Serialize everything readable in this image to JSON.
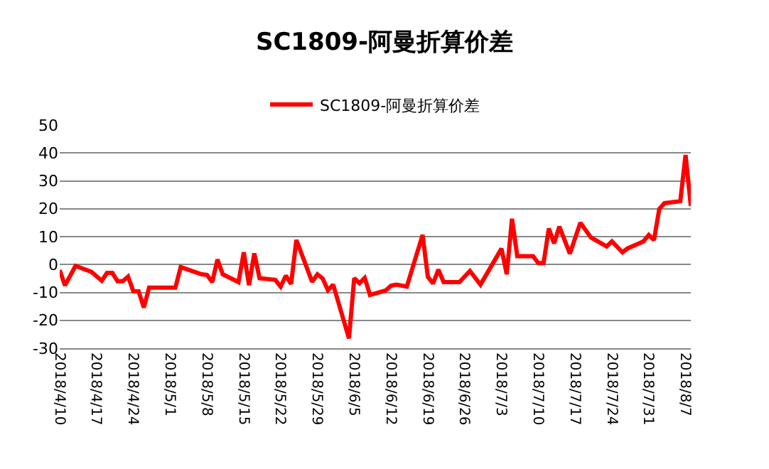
{
  "chart_data": {
    "type": "line",
    "title": "SC1809-阿曼折算价差",
    "legend": "top",
    "grid": "y",
    "marker": "none",
    "line_style": "solid",
    "x": [
      "2018-04-10",
      "2018-04-11",
      "2018-04-13",
      "2018-04-16",
      "2018-04-18",
      "2018-04-19",
      "2018-04-20",
      "2018-04-21",
      "2018-04-22",
      "2018-04-23",
      "2018-04-24",
      "2018-04-25",
      "2018-04-26",
      "2018-04-27",
      "2018-05-02",
      "2018-05-03",
      "2018-05-07",
      "2018-05-08",
      "2018-05-09",
      "2018-05-10",
      "2018-05-11",
      "2018-05-14",
      "2018-05-15",
      "2018-05-16",
      "2018-05-17",
      "2018-05-18",
      "2018-05-21",
      "2018-05-22",
      "2018-05-23",
      "2018-05-24",
      "2018-05-25",
      "2018-05-28",
      "2018-05-29",
      "2018-05-30",
      "2018-05-31",
      "2018-06-01",
      "2018-06-04",
      "2018-06-05",
      "2018-06-06",
      "2018-06-07",
      "2018-06-08",
      "2018-06-11",
      "2018-06-12",
      "2018-06-13",
      "2018-06-15",
      "2018-06-18",
      "2018-06-19",
      "2018-06-20",
      "2018-06-21",
      "2018-06-22",
      "2018-06-25",
      "2018-06-27",
      "2018-06-29",
      "2018-07-03",
      "2018-07-04",
      "2018-07-05",
      "2018-07-06",
      "2018-07-09",
      "2018-07-10",
      "2018-07-11",
      "2018-07-12",
      "2018-07-13",
      "2018-07-14",
      "2018-07-16",
      "2018-07-18",
      "2018-07-20",
      "2018-07-23",
      "2018-07-24",
      "2018-07-26",
      "2018-07-27",
      "2018-07-30",
      "2018-07-31",
      "2018-08-01",
      "2018-08-02",
      "2018-08-03",
      "2018-08-06",
      "2018-08-07",
      "2018-08-08"
    ],
    "series": [
      {
        "name": "SC1809-阿曼折算价差",
        "color": "#ff0000",
        "values": [
          -2,
          -7.5,
          -0.5,
          -2.6,
          -5.8,
          -3,
          -3,
          -6,
          -6,
          -4.3,
          -9.6,
          -9.6,
          -15.4,
          -8.3,
          -8.3,
          -0.9,
          -3.5,
          -3.7,
          -6.3,
          1.8,
          -3.5,
          -6.3,
          4.4,
          -7.4,
          4,
          -4.9,
          -5.5,
          -7.9,
          -4,
          -7,
          8.8,
          -6.2,
          -3.5,
          -5,
          -9.2,
          -7.2,
          -26.5,
          -4.9,
          -6.7,
          -4.8,
          -10.9,
          -9.3,
          -7.6,
          -7.2,
          -7.9,
          10.6,
          -4.4,
          -6.8,
          -1.8,
          -6.3,
          -6.3,
          -2.3,
          -7.2,
          5.7,
          -3.5,
          16.4,
          3,
          3,
          0.5,
          0.5,
          12.9,
          7.6,
          13.6,
          3.9,
          15,
          9.7,
          6.5,
          8.3,
          4.4,
          5.8,
          8.3,
          10.6,
          8.8,
          19.9,
          22,
          22.7,
          39.3,
          21
        ]
      }
    ],
    "ylim": [
      -30,
      50
    ],
    "yticks": [
      -30,
      -20,
      -10,
      0,
      10,
      20,
      30,
      40,
      50
    ],
    "xlim": [
      "2018-04-10",
      "2018-08-08"
    ],
    "xticks": [
      {
        "value": "2018-04-10",
        "label": "2018/4/10"
      },
      {
        "value": "2018-04-17",
        "label": "2018/4/17"
      },
      {
        "value": "2018-04-24",
        "label": "2018/4/24"
      },
      {
        "value": "2018-05-01",
        "label": "2018/5/1"
      },
      {
        "value": "2018-05-08",
        "label": "2018/5/8"
      },
      {
        "value": "2018-05-15",
        "label": "2018/5/15"
      },
      {
        "value": "2018-05-22",
        "label": "2018/5/22"
      },
      {
        "value": "2018-05-29",
        "label": "2018/5/29"
      },
      {
        "value": "2018-06-05",
        "label": "2018/6/5"
      },
      {
        "value": "2018-06-12",
        "label": "2018/6/12"
      },
      {
        "value": "2018-06-19",
        "label": "2018/6/19"
      },
      {
        "value": "2018-06-26",
        "label": "2018/6/26"
      },
      {
        "value": "2018-07-03",
        "label": "2018/7/3"
      },
      {
        "value": "2018-07-10",
        "label": "2018/7/10"
      },
      {
        "value": "2018-07-17",
        "label": "2018/7/17"
      },
      {
        "value": "2018-07-24",
        "label": "2018/7/24"
      },
      {
        "value": "2018-07-31",
        "label": "2018/7/31"
      },
      {
        "value": "2018-08-07",
        "label": "2018/8/7"
      }
    ]
  }
}
